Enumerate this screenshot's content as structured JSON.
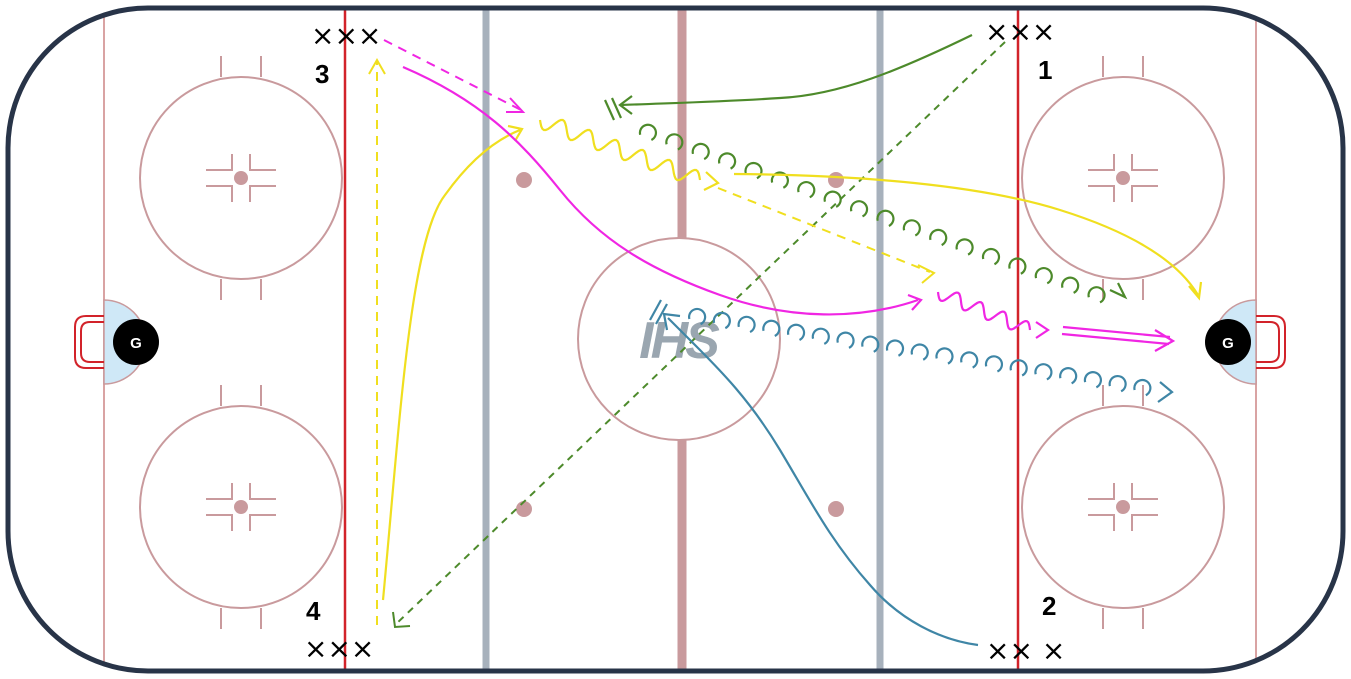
{
  "drill": {
    "groups": [
      {
        "label": "1",
        "markers": "×××"
      },
      {
        "label": "2",
        "markers": "×× ×"
      },
      {
        "label": "3",
        "markers": "×××"
      },
      {
        "label": "4",
        "markers": "×××"
      }
    ],
    "goalies": {
      "left": "G",
      "right": "G"
    },
    "logo": "IHS"
  },
  "colors": {
    "board": "#283448",
    "goal_line": "#d9a3a3",
    "blue_line": "#d2232a",
    "neutral_line": "#a7b1bc",
    "center_line": "#c99a9d",
    "circle": "#c99a9d",
    "crease": "#cfe8f7",
    "net": "#d2232a",
    "green": "#4d8a2b",
    "yellow": "#f0df1f",
    "magenta": "#f026e3",
    "teal": "#3f86a6",
    "logo": "#9aa6b0"
  }
}
